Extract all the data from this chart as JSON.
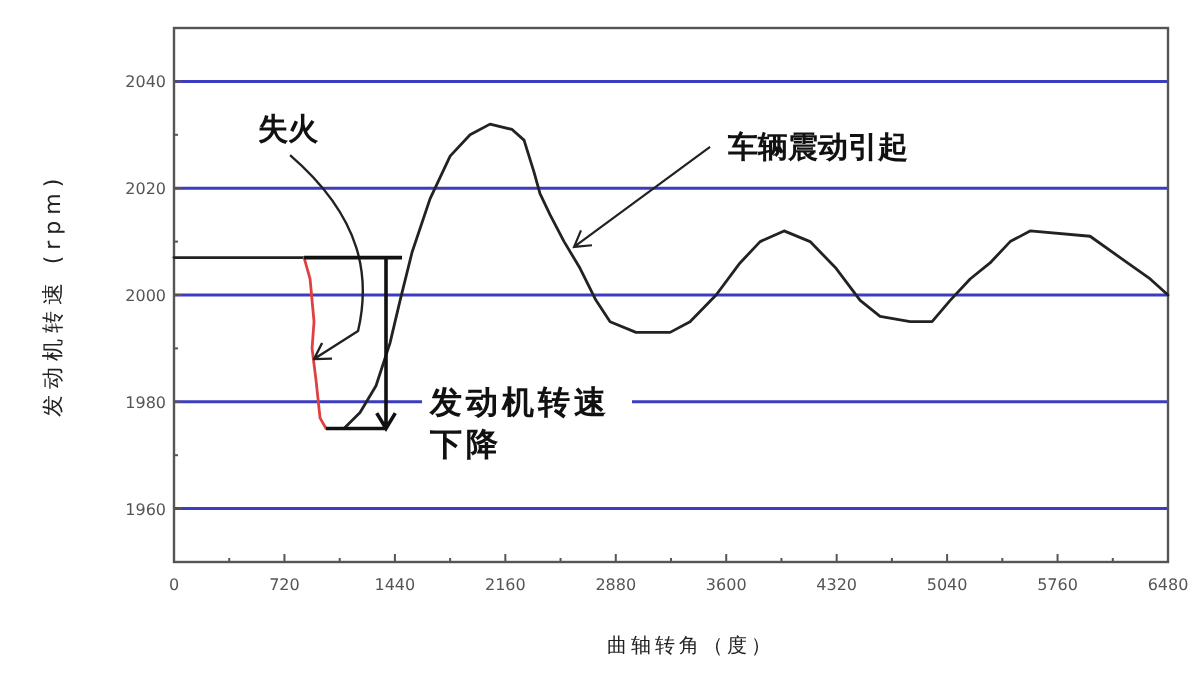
{
  "chart_data": {
    "type": "line",
    "xlabel": "曲轴转角（度）",
    "ylabel": "发动机转速 (rpm)",
    "xlim": [
      0,
      6480
    ],
    "xticks": [
      0,
      720,
      1440,
      2160,
      2880,
      3600,
      4320,
      5040,
      5760,
      6480
    ],
    "ylim": [
      1950,
      2050
    ],
    "yticks": [
      1960,
      1980,
      2000,
      2020,
      2040
    ],
    "grid": "y",
    "line_style": "solid",
    "series": [
      {
        "color": "#222222",
        "x": [
          0,
          150,
          300,
          450,
          600,
          750,
          848
        ],
        "values": [
          2007,
          2007,
          2007,
          2007,
          2007,
          2007,
          2007
        ]
      },
      {
        "color": "#e04040",
        "x": [
          848,
          887,
          913,
          900,
          926,
          952,
          991,
          1017
        ],
        "values": [
          2007,
          2003,
          1995,
          1990,
          1984,
          1977,
          1975,
          1975
        ]
      },
      {
        "color": "#222222",
        "x": [
          1017,
          1108,
          1213,
          1317,
          1408,
          1474,
          1552,
          1669,
          1800,
          1930,
          2060,
          2204,
          2282,
          2347,
          2386,
          2452,
          2543,
          2647,
          2751,
          2843,
          3012,
          3234,
          3364,
          3534,
          3690,
          3821,
          3977,
          4147,
          4316,
          4473,
          4603,
          4799,
          4942,
          5060,
          5190,
          5320,
          5451,
          5581,
          5972,
          6168,
          6364,
          6480
        ],
        "values": [
          1975,
          1975,
          1978,
          1983,
          1991,
          1999,
          2008,
          2018,
          2026,
          2030,
          2032,
          2031,
          2029,
          2023,
          2019,
          2015,
          2010,
          2005,
          1999,
          1995,
          1993,
          1993,
          1995,
          2000,
          2006,
          2010,
          2012,
          2010,
          2005,
          1999,
          1996,
          1995,
          1995,
          1999,
          2003,
          2006,
          2010,
          2012,
          2011,
          2007,
          2003,
          2000
        ]
      }
    ],
    "annotations": [
      {
        "text": "失火",
        "x": 913,
        "y": 1988
      },
      {
        "text": "车辆震动引起",
        "x": 2608,
        "y": 2009
      },
      "发动机转速下降"
    ]
  }
}
